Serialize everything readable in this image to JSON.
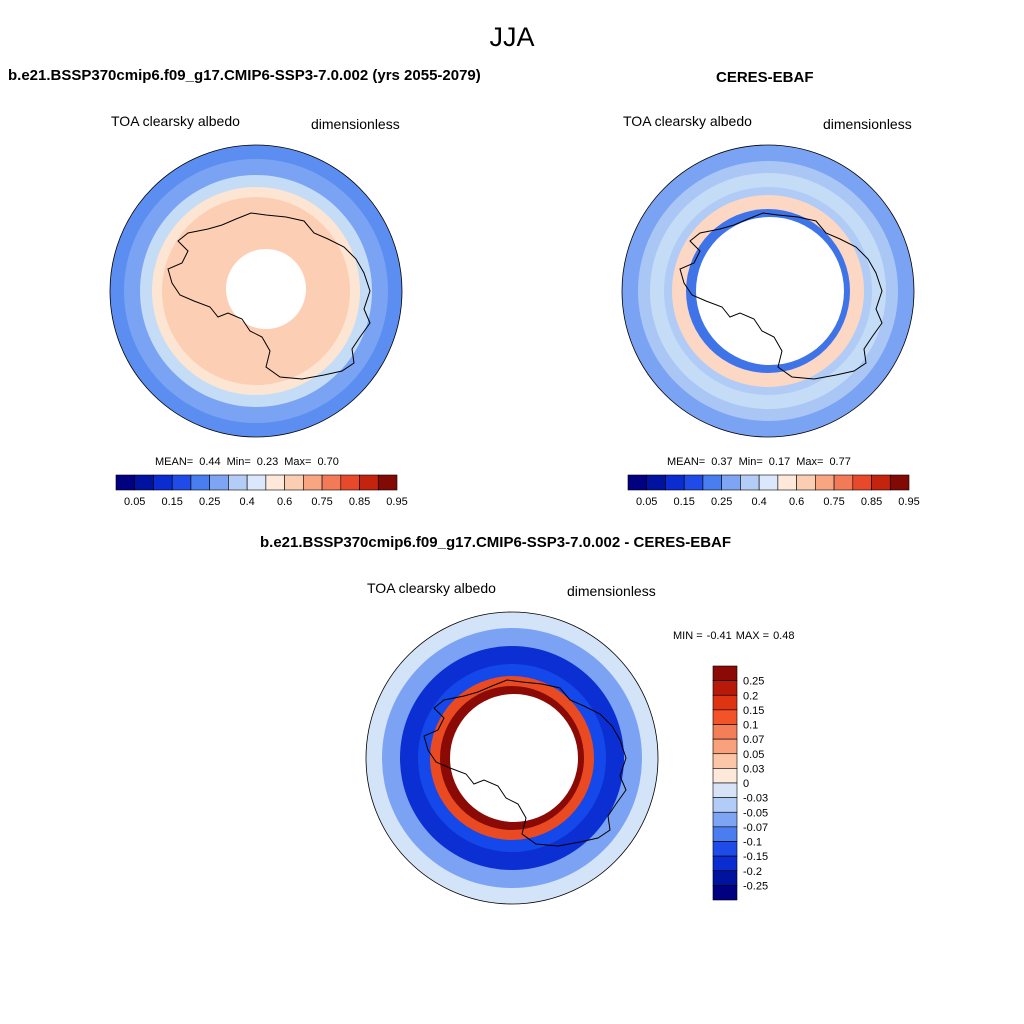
{
  "page_title": "JJA",
  "panels": [
    {
      "title": "b.e21.BSSP370cmip6.f09_g17.CMIP6-SSP3-7.0.002 (yrs 2055-2079)",
      "left_label": "TOA clearsky albedo",
      "right_label": "dimensionless",
      "stats": {
        "mean_label": "MEAN=",
        "mean": "0.44",
        "min_label": "Min=",
        "min": "0.23",
        "max_label": "Max=",
        "max": "0.70"
      }
    },
    {
      "title": "CERES-EBAF",
      "left_label": "TOA clearsky albedo",
      "right_label": "dimensionless",
      "stats": {
        "mean_label": "MEAN=",
        "mean": "0.37",
        "min_label": "Min=",
        "min": "0.17",
        "max_label": "Max=",
        "max": "0.77"
      }
    },
    {
      "title": "b.e21.BSSP370cmip6.f09_g17.CMIP6-SSP3-7.0.002 - CERES-EBAF",
      "left_label": "TOA clearsky albedo",
      "right_label": "dimensionless",
      "stats": {
        "min_label": "MIN =",
        "min": "-0.41",
        "max_label": "MAX =",
        "max": "0.48"
      }
    }
  ],
  "chart_data": [
    {
      "type": "heatmap",
      "projection": "south-polar-stereographic",
      "title": "b.e21.BSSP370cmip6.f09_g17.CMIP6-SSP3-7.0.002 (yrs 2055-2079)",
      "variable": "TOA clearsky albedo",
      "units": "dimensionless",
      "mean": 0.44,
      "min": 0.23,
      "max": 0.7,
      "colorbar_levels": [
        "0.05",
        "0.15",
        "0.25",
        "0.4",
        "0.6",
        "0.75",
        "0.85",
        "0.95"
      ],
      "zonal_bands_outer_to_inner": [
        {
          "value": 0.25,
          "color": "#5b8ef0"
        },
        {
          "value": 0.3,
          "color": "#7ba3f3"
        },
        {
          "value": 0.4,
          "color": "#c5dcf6"
        },
        {
          "value": 0.5,
          "color": "#fde5d4"
        },
        {
          "value": 0.6,
          "color": "#fccfb5"
        }
      ]
    },
    {
      "type": "heatmap",
      "projection": "south-polar-stereographic",
      "title": "CERES-EBAF",
      "variable": "TOA clearsky albedo",
      "units": "dimensionless",
      "mean": 0.37,
      "min": 0.17,
      "max": 0.77,
      "colorbar_levels": [
        "0.05",
        "0.15",
        "0.25",
        "0.4",
        "0.6",
        "0.75",
        "0.85",
        "0.95"
      ],
      "zonal_bands_outer_to_inner": [
        {
          "value": 0.25,
          "color": "#7ba3f3"
        },
        {
          "value": 0.35,
          "color": "#aac6f5"
        },
        {
          "value": 0.4,
          "color": "#c5dcf6"
        },
        {
          "value": 0.3,
          "color": "#b0cbf6"
        },
        {
          "value": 0.55,
          "color": "#fbd7c4"
        },
        {
          "value": 0.2,
          "color": "#3f73e8"
        }
      ]
    },
    {
      "type": "heatmap",
      "projection": "south-polar-stereographic",
      "title": "b.e21.BSSP370cmip6.f09_g17.CMIP6-SSP3-7.0.002 - CERES-EBAF",
      "variable": "TOA clearsky albedo",
      "units": "dimensionless",
      "min": -0.41,
      "max": 0.48,
      "colorbar_levels": [
        "0.25",
        "0.2",
        "0.15",
        "0.1",
        "0.07",
        "0.05",
        "0.03",
        "0",
        "-0.03",
        "-0.05",
        "-0.07",
        "-0.1",
        "-0.15",
        "-0.2",
        "-0.25"
      ],
      "zonal_bands_outer_to_inner": [
        {
          "value": -0.03,
          "color": "#d3e3f8"
        },
        {
          "value": -0.07,
          "color": "#7ca3f3"
        },
        {
          "value": -0.2,
          "color": "#0b2fd2"
        },
        {
          "value": -0.15,
          "color": "#1548ea"
        },
        {
          "value": 0.15,
          "color": "#ea4a22"
        },
        {
          "value": 0.25,
          "color": "#8b0a05"
        }
      ]
    }
  ],
  "colors": {
    "scale_abs": [
      "#000080",
      "#0013a0",
      "#0a2cd0",
      "#1f4be8",
      "#4a7ef0",
      "#7ea5f3",
      "#b3cdf6",
      "#dbe7fa",
      "#fde8da",
      "#fbcdb2",
      "#f8a582",
      "#f27a56",
      "#e8492a",
      "#c4230e",
      "#830a04"
    ],
    "scale_diff": [
      "#8b0a05",
      "#b81a0a",
      "#de3411",
      "#f25328",
      "#f47e57",
      "#f9a07c",
      "#fdc6a8",
      "#fde8da",
      "#d7e4f8",
      "#b1ccf6",
      "#7ea5f3",
      "#4a7ef0",
      "#1f4be8",
      "#0a2cd0",
      "#0013a0",
      "#000080"
    ]
  }
}
